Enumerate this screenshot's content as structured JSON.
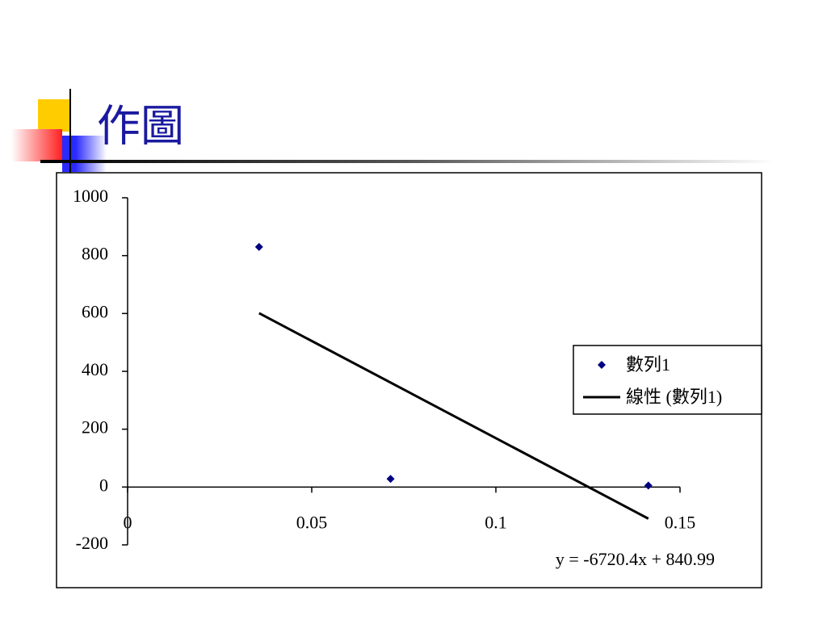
{
  "title": "作圖",
  "chart_data": {
    "type": "scatter",
    "x": [
      0.0357,
      0.0714,
      0.1414
    ],
    "series": [
      {
        "name": "數列1",
        "color": "#000080",
        "values": [
          830,
          28,
          5
        ]
      }
    ],
    "trendline": {
      "name": "線性 (數列1)",
      "color": "#000000",
      "slope": -6720.4,
      "intercept": 840.99,
      "label": "y = -6720.4x + 840.99"
    },
    "xlim": [
      0,
      0.15
    ],
    "xticks": [
      0,
      0.05,
      0.1,
      0.15
    ],
    "ylim": [
      -200,
      1000
    ],
    "yticks": [
      -200,
      0,
      200,
      400,
      600,
      800,
      1000
    ],
    "legend": "right"
  }
}
